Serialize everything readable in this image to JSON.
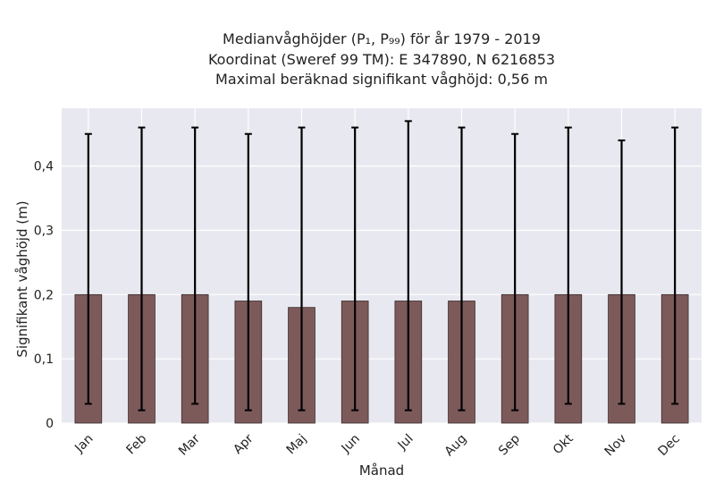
{
  "chart_data": {
    "type": "bar",
    "title": "Medianvåghöjder (P₁, P₉₉) för år 1979 - 2019",
    "title_line1": "Medianvåghöjder (P₁, P₉₉) för år 1979 - 2019",
    "title_line2": "Koordinat (Sweref 99 TM): E 347890, N 6216853",
    "title_line3": "Maximal beräknad signifikant våghöjd: 0,56 m",
    "xlabel": "Månad",
    "ylabel": "Signifikant våghöjd (m)",
    "categories": [
      "Jan",
      "Feb",
      "Mar",
      "Apr",
      "Maj",
      "Jun",
      "Jul",
      "Aug",
      "Sep",
      "Okt",
      "Nov",
      "Dec"
    ],
    "values": [
      0.2,
      0.2,
      0.2,
      0.19,
      0.18,
      0.19,
      0.19,
      0.19,
      0.2,
      0.2,
      0.2,
      0.2
    ],
    "error_low": [
      0.03,
      0.02,
      0.03,
      0.02,
      0.02,
      0.02,
      0.02,
      0.02,
      0.02,
      0.03,
      0.03,
      0.03
    ],
    "error_high": [
      0.45,
      0.46,
      0.46,
      0.45,
      0.46,
      0.46,
      0.47,
      0.46,
      0.45,
      0.46,
      0.44,
      0.46
    ],
    "yticks": [
      0,
      0.1,
      0.2,
      0.3,
      0.4
    ],
    "ytick_labels": [
      "0",
      "0,1",
      "0,2",
      "0,3",
      "0,4"
    ],
    "ylim": [
      0,
      0.49
    ],
    "grid": true,
    "colors": {
      "bar": "#7d5a5a",
      "bar_edge": "#3a2a2a",
      "plot_bg": "#e8e8f0",
      "grid": "#ffffff",
      "errorbar": "#000000"
    }
  }
}
